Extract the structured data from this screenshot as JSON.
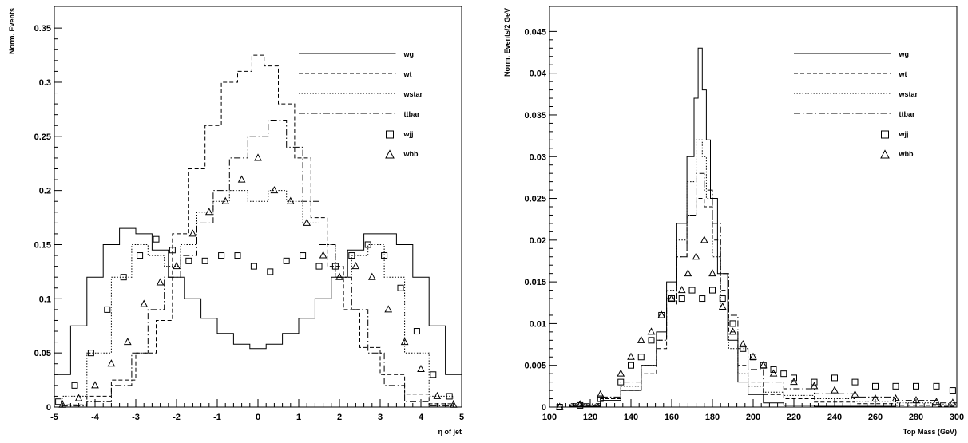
{
  "chart_data": [
    {
      "type": "line",
      "xlabel": "η of jet",
      "ylabel": "Norm. Events",
      "xlim": [
        -5,
        5
      ],
      "ylim": [
        0,
        0.37
      ],
      "xticks": [
        "-5",
        "-4",
        "-3",
        "-2",
        "-1",
        "0",
        "1",
        "2",
        "3",
        "4",
        "5"
      ],
      "yticks": [
        "0",
        "0.05",
        "0.1",
        "0.15",
        "0.2",
        "0.25",
        "0.3",
        "0.35"
      ],
      "grid": false,
      "legend_position": "top-right",
      "series": [
        {
          "name": "wg",
          "style": "solid",
          "x": [
            -4.8,
            -4.4,
            -4.0,
            -3.6,
            -3.2,
            -2.8,
            -2.4,
            -2.0,
            -1.6,
            -1.2,
            -0.8,
            -0.4,
            0.0,
            0.4,
            0.8,
            1.2,
            1.6,
            2.0,
            2.4,
            2.8,
            3.2,
            3.6,
            4.0,
            4.4,
            4.8
          ],
          "y": [
            0.03,
            0.075,
            0.12,
            0.15,
            0.165,
            0.16,
            0.145,
            0.12,
            0.1,
            0.082,
            0.068,
            0.058,
            0.054,
            0.058,
            0.068,
            0.082,
            0.1,
            0.12,
            0.145,
            0.16,
            0.16,
            0.15,
            0.12,
            0.075,
            0.03
          ]
        },
        {
          "name": "wt",
          "style": "dashed",
          "x": [
            -4.5,
            -3.9,
            -3.3,
            -2.7,
            -2.3,
            -1.9,
            -1.5,
            -1.1,
            -0.7,
            -0.3,
            0.0,
            0.3,
            0.7,
            1.1,
            1.5,
            1.9,
            2.3,
            2.7,
            3.3,
            3.9,
            4.5
          ],
          "y": [
            0.002,
            0.01,
            0.025,
            0.05,
            0.08,
            0.16,
            0.22,
            0.26,
            0.3,
            0.31,
            0.325,
            0.315,
            0.28,
            0.23,
            0.175,
            0.13,
            0.09,
            0.055,
            0.03,
            0.012,
            0.003
          ]
        },
        {
          "name": "wstar",
          "style": "dotted",
          "x": [
            -4.5,
            -3.9,
            -3.3,
            -2.9,
            -2.5,
            -2.1,
            -1.7,
            -1.3,
            -0.9,
            -0.5,
            0.0,
            0.5,
            0.9,
            1.3,
            1.7,
            2.1,
            2.5,
            2.9,
            3.3,
            3.9,
            4.5
          ],
          "y": [
            0.01,
            0.05,
            0.12,
            0.15,
            0.14,
            0.13,
            0.15,
            0.18,
            0.19,
            0.2,
            0.19,
            0.2,
            0.19,
            0.17,
            0.15,
            0.12,
            0.14,
            0.15,
            0.12,
            0.05,
            0.01
          ]
        },
        {
          "name": "ttbar",
          "style": "dashdot",
          "x": [
            -4.5,
            -3.9,
            -3.3,
            -2.9,
            -2.5,
            -2.1,
            -1.7,
            -1.3,
            -0.9,
            -0.5,
            0.0,
            0.5,
            0.9,
            1.3,
            1.7,
            2.1,
            2.5,
            2.9,
            3.3,
            3.9,
            4.5
          ],
          "y": [
            0.001,
            0.005,
            0.02,
            0.05,
            0.09,
            0.12,
            0.14,
            0.17,
            0.2,
            0.23,
            0.25,
            0.265,
            0.24,
            0.19,
            0.15,
            0.12,
            0.09,
            0.05,
            0.02,
            0.005,
            0.001
          ]
        },
        {
          "name": "wjj",
          "style": "open-square",
          "x": [
            -4.9,
            -4.5,
            -4.1,
            -3.7,
            -3.3,
            -2.9,
            -2.5,
            -2.1,
            -1.7,
            -1.3,
            -0.9,
            -0.5,
            -0.1,
            0.3,
            0.7,
            1.1,
            1.5,
            1.9,
            2.3,
            2.7,
            3.1,
            3.5,
            3.9,
            4.3,
            4.7
          ],
          "y": [
            0.005,
            0.02,
            0.05,
            0.09,
            0.12,
            0.14,
            0.155,
            0.145,
            0.135,
            0.135,
            0.14,
            0.14,
            0.13,
            0.125,
            0.135,
            0.14,
            0.13,
            0.13,
            0.14,
            0.15,
            0.14,
            0.11,
            0.07,
            0.03,
            0.01
          ]
        },
        {
          "name": "wbb",
          "style": "open-triangle",
          "x": [
            -4.8,
            -4.4,
            -4.0,
            -3.6,
            -3.2,
            -2.8,
            -2.4,
            -2.0,
            -1.6,
            -1.2,
            -0.8,
            -0.4,
            0.0,
            0.4,
            0.8,
            1.2,
            1.6,
            2.0,
            2.4,
            2.8,
            3.2,
            3.6,
            4.0,
            4.4,
            4.8
          ],
          "y": [
            0.002,
            0.008,
            0.02,
            0.04,
            0.06,
            0.095,
            0.115,
            0.13,
            0.16,
            0.18,
            0.19,
            0.21,
            0.23,
            0.2,
            0.19,
            0.17,
            0.14,
            0.12,
            0.13,
            0.12,
            0.09,
            0.06,
            0.035,
            0.01,
            0.002
          ]
        }
      ]
    },
    {
      "type": "line",
      "xlabel": "Top Mass (GeV)",
      "ylabel": "Norm. Events/2 GeV",
      "xlim": [
        100,
        300
      ],
      "ylim": [
        0,
        0.048
      ],
      "xticks": [
        "100",
        "120",
        "140",
        "160",
        "180",
        "200",
        "220",
        "240",
        "260",
        "280",
        "300"
      ],
      "yticks": [
        "0",
        "0.005",
        "0.01",
        "0.015",
        "0.02",
        "0.025",
        "0.03",
        "0.035",
        "0.04",
        "0.045"
      ],
      "grid": false,
      "legend_position": "top-right",
      "series": [
        {
          "name": "wg",
          "style": "solid",
          "x": [
            100,
            120,
            130,
            140,
            150,
            155,
            160,
            165,
            170,
            172,
            174,
            176,
            178,
            180,
            185,
            190,
            195,
            200,
            210,
            220,
            240,
            260,
            280,
            300
          ],
          "y": [
            0,
            0.0001,
            0.0008,
            0.002,
            0.005,
            0.009,
            0.015,
            0.022,
            0.03,
            0.037,
            0.043,
            0.038,
            0.032,
            0.025,
            0.016,
            0.008,
            0.003,
            0.0015,
            0.0005,
            0.0002,
            0.0001,
            0.0001,
            0,
            0
          ]
        },
        {
          "name": "wt",
          "style": "dashed",
          "x": [
            100,
            120,
            130,
            140,
            150,
            155,
            160,
            165,
            170,
            174,
            178,
            182,
            186,
            190,
            195,
            200,
            210,
            220,
            240,
            260,
            280,
            300
          ],
          "y": [
            0,
            0.0002,
            0.001,
            0.002,
            0.004,
            0.007,
            0.012,
            0.018,
            0.023,
            0.025,
            0.024,
            0.02,
            0.014,
            0.009,
            0.005,
            0.003,
            0.0015,
            0.001,
            0.0006,
            0.0004,
            0.0002,
            0.0001
          ]
        },
        {
          "name": "wstar",
          "style": "dotted",
          "x": [
            100,
            120,
            130,
            140,
            150,
            155,
            160,
            165,
            170,
            174,
            176,
            178,
            182,
            186,
            190,
            195,
            200,
            210,
            220,
            240,
            260,
            280,
            300
          ],
          "y": [
            0,
            0.0003,
            0.001,
            0.0025,
            0.005,
            0.008,
            0.014,
            0.02,
            0.027,
            0.032,
            0.03,
            0.025,
            0.018,
            0.012,
            0.007,
            0.004,
            0.0025,
            0.0018,
            0.0014,
            0.001,
            0.0007,
            0.0005,
            0.0003
          ]
        },
        {
          "name": "ttbar",
          "style": "dashdot",
          "x": [
            100,
            120,
            130,
            140,
            150,
            155,
            160,
            165,
            170,
            174,
            178,
            182,
            186,
            190,
            195,
            200,
            210,
            220,
            240,
            260,
            280,
            300
          ],
          "y": [
            0,
            0.0004,
            0.0012,
            0.003,
            0.005,
            0.008,
            0.013,
            0.018,
            0.023,
            0.028,
            0.026,
            0.022,
            0.016,
            0.011,
            0.007,
            0.0045,
            0.003,
            0.0022,
            0.0016,
            0.0012,
            0.0008,
            0.0005
          ]
        },
        {
          "name": "wjj",
          "style": "open-square",
          "x": [
            105,
            115,
            125,
            135,
            140,
            145,
            150,
            155,
            160,
            165,
            170,
            175,
            180,
            185,
            190,
            195,
            200,
            205,
            210,
            215,
            220,
            230,
            240,
            250,
            260,
            270,
            280,
            290,
            298
          ],
          "y": [
            0,
            0.0002,
            0.001,
            0.003,
            0.005,
            0.006,
            0.008,
            0.011,
            0.013,
            0.013,
            0.014,
            0.013,
            0.014,
            0.013,
            0.01,
            0.007,
            0.006,
            0.005,
            0.0045,
            0.004,
            0.0035,
            0.003,
            0.0035,
            0.003,
            0.0025,
            0.0025,
            0.0025,
            0.0025,
            0.002
          ]
        },
        {
          "name": "wbb",
          "style": "open-triangle",
          "x": [
            105,
            115,
            125,
            135,
            140,
            145,
            150,
            155,
            160,
            165,
            168,
            172,
            176,
            180,
            185,
            190,
            195,
            200,
            205,
            210,
            220,
            230,
            240,
            250,
            260,
            270,
            280,
            290,
            298
          ],
          "y": [
            0,
            0.0003,
            0.0015,
            0.004,
            0.006,
            0.008,
            0.009,
            0.011,
            0.013,
            0.014,
            0.016,
            0.018,
            0.02,
            0.016,
            0.012,
            0.009,
            0.0075,
            0.006,
            0.005,
            0.004,
            0.003,
            0.0025,
            0.002,
            0.0015,
            0.001,
            0.001,
            0.0008,
            0.0006,
            0.0005
          ]
        }
      ]
    }
  ]
}
